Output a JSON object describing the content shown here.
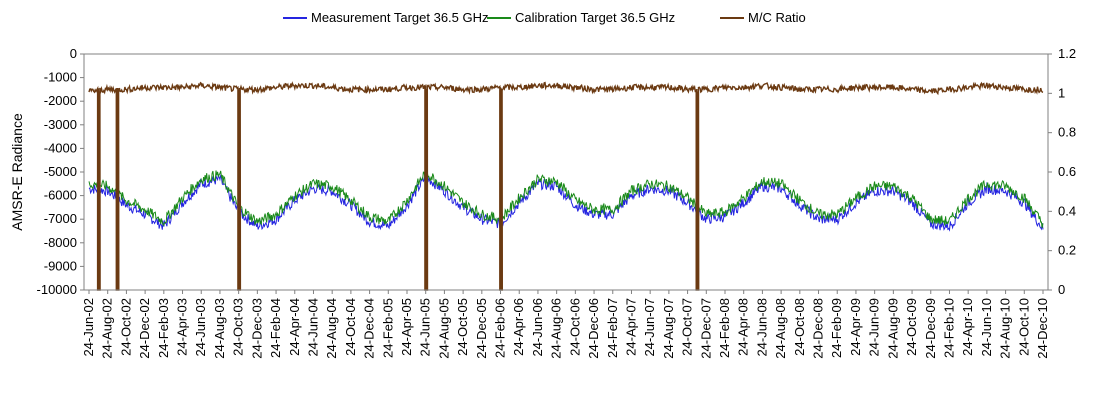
{
  "chart_data": {
    "type": "line",
    "title": "",
    "ylabel": "AMSR-E Radiance",
    "y2label": "",
    "xlabel": "",
    "ylim": [
      -10000,
      0
    ],
    "y2lim": [
      0,
      1.2
    ],
    "y_ticks": [
      "0",
      "-1000",
      "-2000",
      "-3000",
      "-4000",
      "-5000",
      "-6000",
      "-7000",
      "-8000",
      "-9000",
      "-10000"
    ],
    "y2_ticks": [
      "1.2",
      "1",
      "0.8",
      "0.6",
      "0.4",
      "0.2",
      "0"
    ],
    "x_ticks": [
      "24-Jun-02",
      "24-Aug-02",
      "24-Oct-02",
      "24-Dec-02",
      "24-Feb-03",
      "24-Apr-03",
      "24-Jun-03",
      "24-Aug-03",
      "24-Oct-03",
      "24-Dec-03",
      "24-Feb-04",
      "24-Apr-04",
      "24-Jun-04",
      "24-Aug-04",
      "24-Oct-04",
      "24-Dec-04",
      "24-Feb-05",
      "24-Apr-05",
      "24-Jun-05",
      "24-Aug-05",
      "24-Oct-05",
      "24-Dec-05",
      "24-Feb-06",
      "24-Apr-06",
      "24-Jun-06",
      "24-Aug-06",
      "24-Oct-06",
      "24-Dec-06",
      "24-Feb-07",
      "24-Apr-07",
      "24-Jun-07",
      "24-Aug-07",
      "24-Oct-07",
      "24-Dec-07",
      "24-Feb-08",
      "24-Apr-08",
      "24-Jun-08",
      "24-Aug-08",
      "24-Oct-08",
      "24-Dec-08",
      "24-Feb-09",
      "24-Apr-09",
      "24-Jun-09",
      "24-Aug-09",
      "24-Oct-09",
      "24-Dec-09",
      "24-Feb-10",
      "24-Apr-10",
      "24-Jun-10",
      "24-Aug-10",
      "24-Oct-10",
      "24-Dec-10"
    ],
    "grid": false,
    "legend_position": "top",
    "series": [
      {
        "name": "Measurement Target 36.5 GHz",
        "axis": "left",
        "color": "#2525e0",
        "x": [
          "24-Jun-02",
          "24-Aug-02",
          "24-Oct-02",
          "24-Dec-02",
          "24-Feb-03",
          "24-Apr-03",
          "24-Jun-03",
          "24-Aug-03",
          "24-Oct-03",
          "24-Dec-03",
          "24-Feb-04",
          "24-Apr-04",
          "24-Jun-04",
          "24-Aug-04",
          "24-Oct-04",
          "24-Dec-04",
          "24-Feb-05",
          "24-Apr-05",
          "24-Jun-05",
          "24-Aug-05",
          "24-Oct-05",
          "24-Dec-05",
          "24-Feb-06",
          "24-Apr-06",
          "24-Jun-06",
          "24-Aug-06",
          "24-Oct-06",
          "24-Dec-06",
          "24-Feb-07",
          "24-Apr-07",
          "24-Jun-07",
          "24-Aug-07",
          "24-Oct-07",
          "24-Dec-07",
          "24-Feb-08",
          "24-Apr-08",
          "24-Jun-08",
          "24-Aug-08",
          "24-Oct-08",
          "24-Dec-08",
          "24-Feb-09",
          "24-Apr-09",
          "24-Jun-09",
          "24-Aug-09",
          "24-Oct-09",
          "24-Dec-09",
          "24-Feb-10",
          "24-Apr-10",
          "24-Jun-10",
          "24-Aug-10",
          "24-Oct-10",
          "24-Dec-10"
        ],
        "values": [
          -5700,
          -5800,
          -6400,
          -6800,
          -7300,
          -6300,
          -5500,
          -5300,
          -6700,
          -7300,
          -7000,
          -6200,
          -5700,
          -5800,
          -6400,
          -7100,
          -7300,
          -6400,
          -5200,
          -5800,
          -6500,
          -7000,
          -7200,
          -6300,
          -5500,
          -5600,
          -6400,
          -6800,
          -6800,
          -6000,
          -5700,
          -5800,
          -6300,
          -7000,
          -6900,
          -6300,
          -5600,
          -5700,
          -6400,
          -7000,
          -7000,
          -6300,
          -5800,
          -5800,
          -6300,
          -7200,
          -7300,
          -6300,
          -5700,
          -5800,
          -6300,
          -7400
        ]
      },
      {
        "name": "Calibration Target 36.5 GHz",
        "axis": "left",
        "color": "#1a8a1a",
        "x": [
          "24-Jun-02",
          "24-Aug-02",
          "24-Oct-02",
          "24-Dec-02",
          "24-Feb-03",
          "24-Apr-03",
          "24-Jun-03",
          "24-Aug-03",
          "24-Oct-03",
          "24-Dec-03",
          "24-Feb-04",
          "24-Apr-04",
          "24-Jun-04",
          "24-Aug-04",
          "24-Oct-04",
          "24-Dec-04",
          "24-Feb-05",
          "24-Apr-05",
          "24-Jun-05",
          "24-Aug-05",
          "24-Oct-05",
          "24-Dec-05",
          "24-Feb-06",
          "24-Apr-06",
          "24-Jun-06",
          "24-Aug-06",
          "24-Oct-06",
          "24-Dec-06",
          "24-Feb-07",
          "24-Apr-07",
          "24-Jun-07",
          "24-Aug-07",
          "24-Oct-07",
          "24-Dec-07",
          "24-Feb-08",
          "24-Apr-08",
          "24-Jun-08",
          "24-Aug-08",
          "24-Oct-08",
          "24-Dec-08",
          "24-Feb-09",
          "24-Apr-09",
          "24-Jun-09",
          "24-Aug-09",
          "24-Oct-09",
          "24-Dec-09",
          "24-Feb-10",
          "24-Apr-10",
          "24-Jun-10",
          "24-Aug-10",
          "24-Oct-10",
          "24-Dec-10"
        ],
        "values": [
          -5500,
          -5600,
          -6200,
          -6600,
          -7100,
          -6100,
          -5300,
          -5100,
          -6500,
          -7100,
          -6800,
          -6000,
          -5500,
          -5600,
          -6200,
          -6900,
          -7100,
          -6200,
          -5000,
          -5600,
          -6300,
          -6800,
          -7000,
          -6100,
          -5300,
          -5400,
          -6200,
          -6600,
          -6600,
          -5800,
          -5500,
          -5600,
          -6100,
          -6800,
          -6700,
          -6100,
          -5400,
          -5500,
          -6200,
          -6800,
          -6800,
          -6100,
          -5600,
          -5600,
          -6100,
          -7000,
          -7100,
          -6100,
          -5500,
          -5600,
          -6100,
          -7200
        ]
      },
      {
        "name": "M/C Ratio",
        "axis": "right",
        "color": "#6b3a12",
        "x": [
          "24-Jun-02",
          "24-Aug-02",
          "24-Oct-02",
          "24-Dec-02",
          "24-Feb-03",
          "24-Apr-03",
          "24-Jun-03",
          "24-Aug-03",
          "24-Oct-03",
          "24-Dec-03",
          "24-Feb-04",
          "24-Apr-04",
          "24-Jun-04",
          "24-Aug-04",
          "24-Oct-04",
          "24-Dec-04",
          "24-Feb-05",
          "24-Apr-05",
          "24-Jun-05",
          "24-Aug-05",
          "24-Oct-05",
          "24-Dec-05",
          "24-Feb-06",
          "24-Apr-06",
          "24-Jun-06",
          "24-Aug-06",
          "24-Oct-06",
          "24-Dec-06",
          "24-Feb-07",
          "24-Apr-07",
          "24-Jun-07",
          "24-Aug-07",
          "24-Oct-07",
          "24-Dec-07",
          "24-Feb-08",
          "24-Apr-08",
          "24-Jun-08",
          "24-Aug-08",
          "24-Oct-08",
          "24-Dec-08",
          "24-Feb-09",
          "24-Apr-09",
          "24-Jun-09",
          "24-Aug-09",
          "24-Oct-09",
          "24-Dec-09",
          "24-Feb-10",
          "24-Apr-10",
          "24-Jun-10",
          "24-Aug-10",
          "24-Oct-10",
          "24-Dec-10"
        ],
        "values": [
          1.01,
          1.02,
          1.02,
          1.03,
          1.03,
          1.03,
          1.04,
          1.03,
          1.02,
          1.02,
          1.03,
          1.04,
          1.04,
          1.03,
          1.02,
          1.02,
          1.02,
          1.03,
          1.03,
          1.03,
          1.02,
          1.02,
          1.03,
          1.03,
          1.04,
          1.04,
          1.03,
          1.02,
          1.02,
          1.03,
          1.03,
          1.03,
          1.02,
          1.02,
          1.03,
          1.03,
          1.04,
          1.03,
          1.02,
          1.02,
          1.02,
          1.03,
          1.03,
          1.03,
          1.02,
          1.01,
          1.02,
          1.03,
          1.04,
          1.03,
          1.02,
          1.02
        ],
        "drops_to_zero": [
          "24-Jul-02",
          "24-Sep-02",
          "24-Oct-03",
          "24-Jun-05",
          "24-Feb-06",
          "24-Nov-07"
        ]
      }
    ]
  }
}
